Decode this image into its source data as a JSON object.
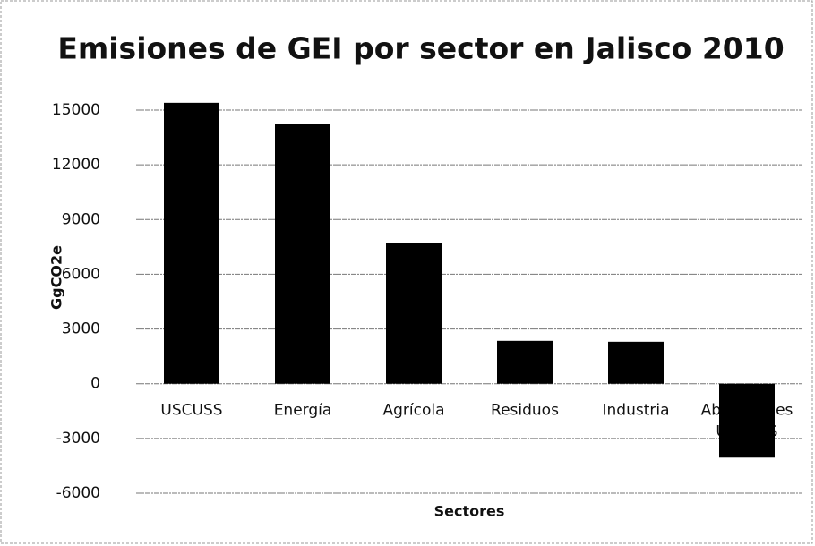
{
  "chart_data": {
    "type": "bar",
    "title": "Emisiones de GEI por sector en Jalisco 2010",
    "x_label": "Sectores",
    "y_label": "GgCO2e",
    "categories": [
      "USCUSS",
      "Energía",
      "Agrícola",
      "Residuos",
      "Industria",
      "Absorciones USCUSS"
    ],
    "values": [
      15400,
      14250,
      7700,
      2350,
      2300,
      -4050
    ],
    "color": "#000000",
    "ylim": [
      -6000,
      15000
    ],
    "yticks": [
      -6000,
      -3000,
      0,
      3000,
      6000,
      9000,
      12000,
      15000
    ],
    "grid": true
  }
}
